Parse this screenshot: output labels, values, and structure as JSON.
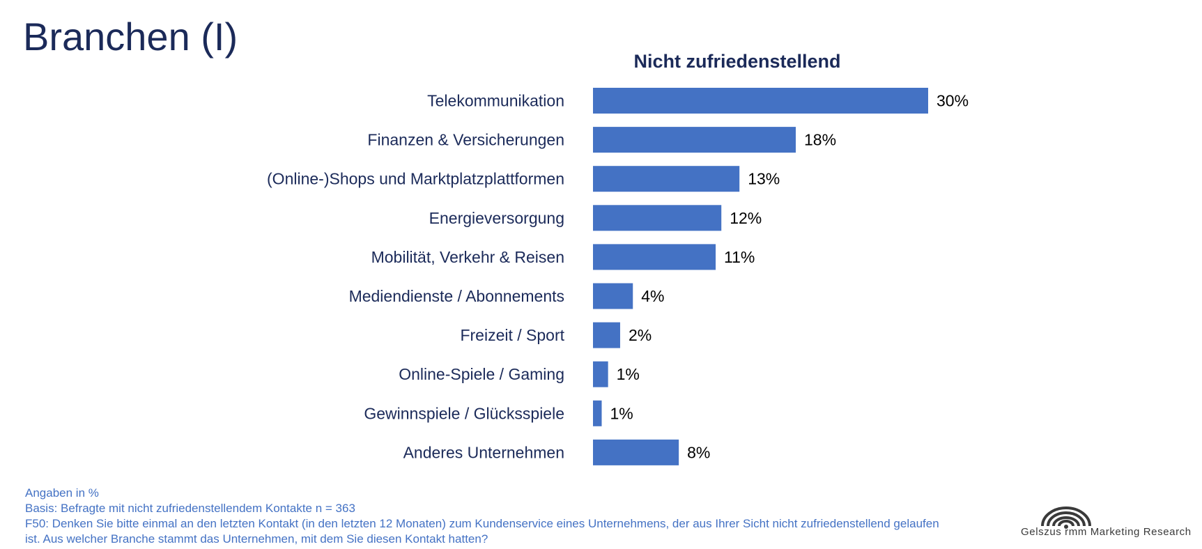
{
  "page": {
    "title": "Branchen (I)"
  },
  "chart_data": {
    "type": "bar",
    "orientation": "horizontal",
    "title": "Nicht zufriedenstellend",
    "xlabel": "",
    "ylabel": "",
    "categories": [
      "Telekommunikation",
      "Finanzen & Versicherungen",
      "(Online-)Shops und Marktplatzplattformen",
      "Energieversorgung",
      "Mobilität, Verkehr & Reisen",
      "Mediendienste / Abonnements",
      "Freizeit / Sport",
      "Online-Spiele / Gaming",
      "Gewinnspiele / Glücksspiele",
      "Anderes Unternehmen"
    ],
    "values": [
      30,
      18,
      13,
      12,
      11,
      4,
      2,
      1,
      1,
      8
    ],
    "value_labels": [
      "30%",
      "18%",
      "13%",
      "12%",
      "11%",
      "4%",
      "2%",
      "1%",
      "1%",
      "8%"
    ],
    "bar_fractions": [
      1.0,
      0.605,
      0.437,
      0.383,
      0.366,
      0.119,
      0.081,
      0.045,
      0.026,
      0.256
    ],
    "grid": false,
    "legend": "none",
    "bar_color": "#4472c4"
  },
  "footnotes": {
    "units": "Angaben in %",
    "basis": "Basis: Befragte mit nicht zufriedenstellendem Kontakte n = 363",
    "question_line1": "F50: Denken Sie bitte einmal an den letzten Kontakt (in den letzten 12 Monaten) zum Kundenservice eines Unternehmens, der aus Ihrer Sicht nicht zufriedenstellend gelaufen",
    "question_line2": "ist. Aus welcher Branche stammt das Unternehmen, mit dem Sie diesen Kontakt hatten?",
    "color": "#4472c4"
  },
  "logo": {
    "text": "Gelszus rmm Marketing Research",
    "icon": "signal-arcs-icon"
  },
  "colors": {
    "title": "#1b2a59",
    "bar": "#4472c4"
  }
}
